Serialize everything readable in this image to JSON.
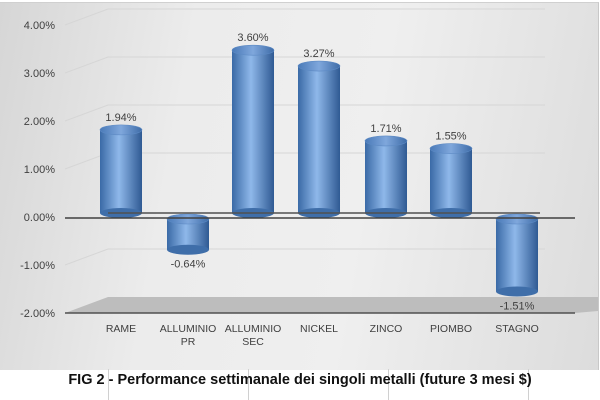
{
  "caption": "FIG 2 - Performance settimanale dei singoli metalli (future 3 mesi $)",
  "colors": {
    "bar": "#4f81bd",
    "bar_light": "#8db4e2",
    "bar_dark": "#2f5a8f",
    "axis": "#404040",
    "floor": "#bfbfbf"
  },
  "chart_data": {
    "type": "bar",
    "style": "3d-cylinder",
    "title": "FIG 2 - Performance settimanale dei singoli metalli (future 3 mesi $)",
    "xlabel": "",
    "ylabel": "",
    "categories": [
      "RAME",
      "ALLUMINIO PR",
      "ALLUMINIO SEC",
      "NICKEL",
      "ZINCO",
      "PIOMBO",
      "STAGNO"
    ],
    "category_lines": [
      [
        "RAME"
      ],
      [
        "ALLUMINIO",
        "PR"
      ],
      [
        "ALLUMINIO",
        "SEC"
      ],
      [
        "NICKEL"
      ],
      [
        "ZINCO"
      ],
      [
        "PIOMBO"
      ],
      [
        "STAGNO"
      ]
    ],
    "values": [
      1.94,
      -0.64,
      3.6,
      3.27,
      1.71,
      1.55,
      -1.51
    ],
    "data_labels": [
      "1.94%",
      "-0.64%",
      "3.60%",
      "3.27%",
      "1.71%",
      "1.55%",
      "-1.51%"
    ],
    "yticks": [
      "4.00%",
      "3.00%",
      "2.00%",
      "1.00%",
      "0.00%",
      "-1.00%",
      "-2.00%"
    ],
    "ytick_values": [
      4,
      3,
      2,
      1,
      0,
      -1,
      -2
    ],
    "ylim": [
      -2,
      4
    ],
    "grid": true,
    "legend": null
  }
}
